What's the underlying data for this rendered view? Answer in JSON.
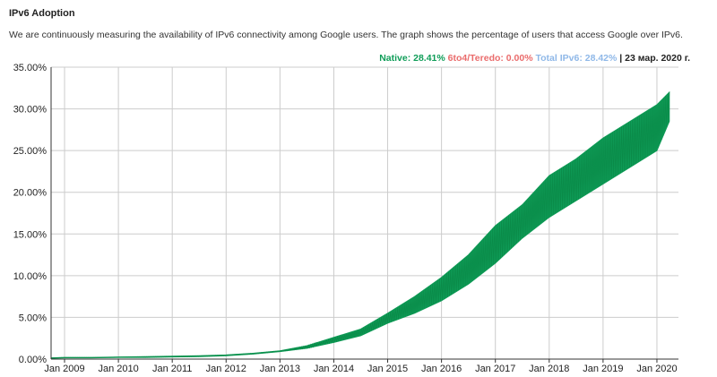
{
  "header": {
    "title": "IPv6 Adoption",
    "description": "We are continuously measuring the availability of IPv6 connectivity among Google users. The graph shows the percentage of users that access Google over IPv6."
  },
  "legend": {
    "native": "Native: 28.41%",
    "t6to4": "6to4/Teredo: 0.00%",
    "total": "Total IPv6: 28.42%",
    "separator": "|",
    "date": "23 мар. 2020 г."
  },
  "colors": {
    "native": "#0f9d58",
    "t6to4": "#ea6c6c",
    "total": "#8fb8e8",
    "grid": "#cccccc",
    "axis": "#333333"
  },
  "chart_data": {
    "type": "area",
    "ylim": [
      0,
      35
    ],
    "xlim": [
      2008.75,
      2020.4
    ],
    "grid": true,
    "yticks": [
      {
        "value": 0,
        "label": "0.00%"
      },
      {
        "value": 5,
        "label": "5.00%"
      },
      {
        "value": 10,
        "label": "10.00%"
      },
      {
        "value": 15,
        "label": "15.00%"
      },
      {
        "value": 20,
        "label": "20.00%"
      },
      {
        "value": 25,
        "label": "25.00%"
      },
      {
        "value": 30,
        "label": "30.00%"
      },
      {
        "value": 35,
        "label": "35.00%"
      }
    ],
    "xticks": [
      {
        "value": 2009,
        "label": "Jan 2009"
      },
      {
        "value": 2010,
        "label": "Jan 2010"
      },
      {
        "value": 2011,
        "label": "Jan 2011"
      },
      {
        "value": 2012,
        "label": "Jan 2012"
      },
      {
        "value": 2013,
        "label": "Jan 2013"
      },
      {
        "value": 2014,
        "label": "Jan 2014"
      },
      {
        "value": 2015,
        "label": "Jan 2015"
      },
      {
        "value": 2016,
        "label": "Jan 2016"
      },
      {
        "value": 2017,
        "label": "Jan 2017"
      },
      {
        "value": 2018,
        "label": "Jan 2018"
      },
      {
        "value": 2019,
        "label": "Jan 2019"
      },
      {
        "value": 2020,
        "label": "Jan 2020"
      }
    ],
    "series": [
      {
        "name": "Native",
        "x": [
          2008.75,
          2009,
          2009.5,
          2010,
          2010.5,
          2011,
          2011.5,
          2012,
          2012.5,
          2013,
          2013.5,
          2014,
          2014.5,
          2015,
          2015.5,
          2016,
          2016.5,
          2017,
          2017.5,
          2018,
          2018.5,
          2019,
          2019.5,
          2020,
          2020.23
        ],
        "low": [
          0.1,
          0.15,
          0.15,
          0.2,
          0.2,
          0.25,
          0.3,
          0.4,
          0.6,
          0.9,
          1.3,
          2.0,
          2.8,
          4.3,
          5.5,
          7.0,
          9.0,
          11.5,
          14.5,
          17.0,
          19.0,
          21.0,
          23.0,
          25.0,
          28.5
        ],
        "high": [
          0.15,
          0.2,
          0.2,
          0.25,
          0.3,
          0.35,
          0.4,
          0.5,
          0.7,
          1.0,
          1.6,
          2.6,
          3.6,
          5.5,
          7.5,
          9.8,
          12.5,
          16.0,
          18.5,
          22.0,
          24.0,
          26.5,
          28.5,
          30.5,
          32.0
        ]
      }
    ]
  }
}
